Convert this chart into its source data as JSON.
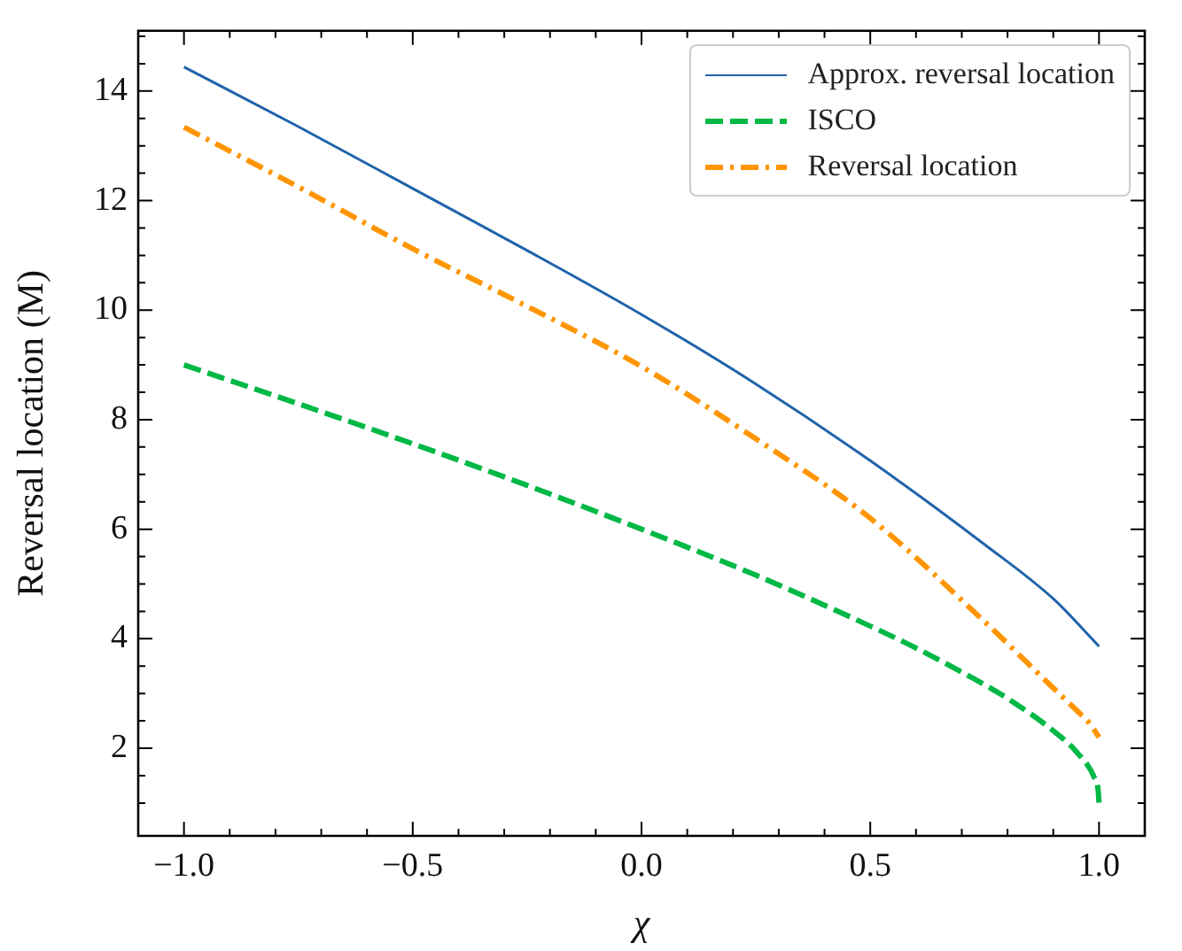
{
  "chart_data": {
    "type": "line",
    "xlabel": "χ",
    "ylabel": "Reversal location (M)",
    "xlim": [
      -1.1,
      1.1
    ],
    "ylim": [
      0.4,
      15.1
    ],
    "xticks": [
      {
        "value": -1,
        "label": "−1.0"
      },
      {
        "value": -0.9,
        "label": null
      },
      {
        "value": -0.8,
        "label": null
      },
      {
        "value": -0.7,
        "label": null
      },
      {
        "value": -0.6,
        "label": null
      },
      {
        "value": -0.5,
        "label": "−0.5"
      },
      {
        "value": -0.4,
        "label": null
      },
      {
        "value": -0.3,
        "label": null
      },
      {
        "value": -0.2,
        "label": null
      },
      {
        "value": -0.1,
        "label": null
      },
      {
        "value": 0,
        "label": "0.0"
      },
      {
        "value": 0.1,
        "label": null
      },
      {
        "value": 0.2,
        "label": null
      },
      {
        "value": 0.3,
        "label": null
      },
      {
        "value": 0.4,
        "label": null
      },
      {
        "value": 0.5,
        "label": "0.5"
      },
      {
        "value": 0.6,
        "label": null
      },
      {
        "value": 0.7,
        "label": null
      },
      {
        "value": 0.8,
        "label": null
      },
      {
        "value": 0.9,
        "label": null
      },
      {
        "value": 1,
        "label": "1.0"
      }
    ],
    "yticks": [
      {
        "value": 1,
        "label": null
      },
      {
        "value": 1.5,
        "label": null
      },
      2,
      {
        "value": 2.5,
        "label": null
      },
      {
        "value": 3,
        "label": null
      },
      {
        "value": 3.5,
        "label": null
      },
      4,
      {
        "value": 4.5,
        "label": null
      },
      {
        "value": 5,
        "label": null
      },
      {
        "value": 5.5,
        "label": null
      },
      6,
      {
        "value": 6.5,
        "label": null
      },
      {
        "value": 7,
        "label": null
      },
      {
        "value": 7.5,
        "label": null
      },
      8,
      {
        "value": 8.5,
        "label": null
      },
      {
        "value": 9,
        "label": null
      },
      {
        "value": 9.5,
        "label": null
      },
      10,
      {
        "value": 10.5,
        "label": null
      },
      {
        "value": 11,
        "label": null
      },
      {
        "value": 11.5,
        "label": null
      },
      12,
      {
        "value": 12.5,
        "label": null
      },
      {
        "value": 13,
        "label": null
      },
      {
        "value": 13.5,
        "label": null
      },
      14,
      {
        "value": 14.5,
        "label": null
      },
      {
        "value": 15,
        "label": null
      }
    ],
    "grid": false,
    "legend": "top right",
    "marker": "none",
    "series": [
      {
        "name": "Approx. reversal location",
        "color": "#1f63aa",
        "line_style": "solid",
        "x": [
          -1,
          -0.75,
          -0.5,
          -0.25,
          0,
          0.25,
          0.5,
          0.75,
          0.9,
          1
        ],
        "values": [
          14.44,
          13.35,
          12.22,
          11.09,
          9.92,
          8.65,
          7.25,
          5.72,
          4.73,
          3.86
        ]
      },
      {
        "name": "ISCO",
        "color": "#00b845",
        "line_style": "dashed",
        "x": [
          -1,
          -0.75,
          -0.5,
          -0.25,
          0,
          0.25,
          0.5,
          0.6,
          0.75,
          0.8,
          0.9,
          0.95,
          0.99,
          0.998,
          1
        ],
        "values": [
          9,
          8.29,
          7.56,
          6.8,
          6,
          5.16,
          4.23,
          3.83,
          3.16,
          2.91,
          2.32,
          1.94,
          1.46,
          1.24,
          1
        ]
      },
      {
        "name": "Reversal location",
        "color": "#ff9500",
        "line_style": "dashdot",
        "x": [
          -1,
          -0.75,
          -0.5,
          -0.25,
          0,
          0.25,
          0.5,
          0.75,
          0.9,
          0.95,
          0.98,
          1
        ],
        "values": [
          13.34,
          12.25,
          11.12,
          10.07,
          8.97,
          7.65,
          6.2,
          4.31,
          3.1,
          2.7,
          2.45,
          2.2
        ]
      }
    ]
  }
}
